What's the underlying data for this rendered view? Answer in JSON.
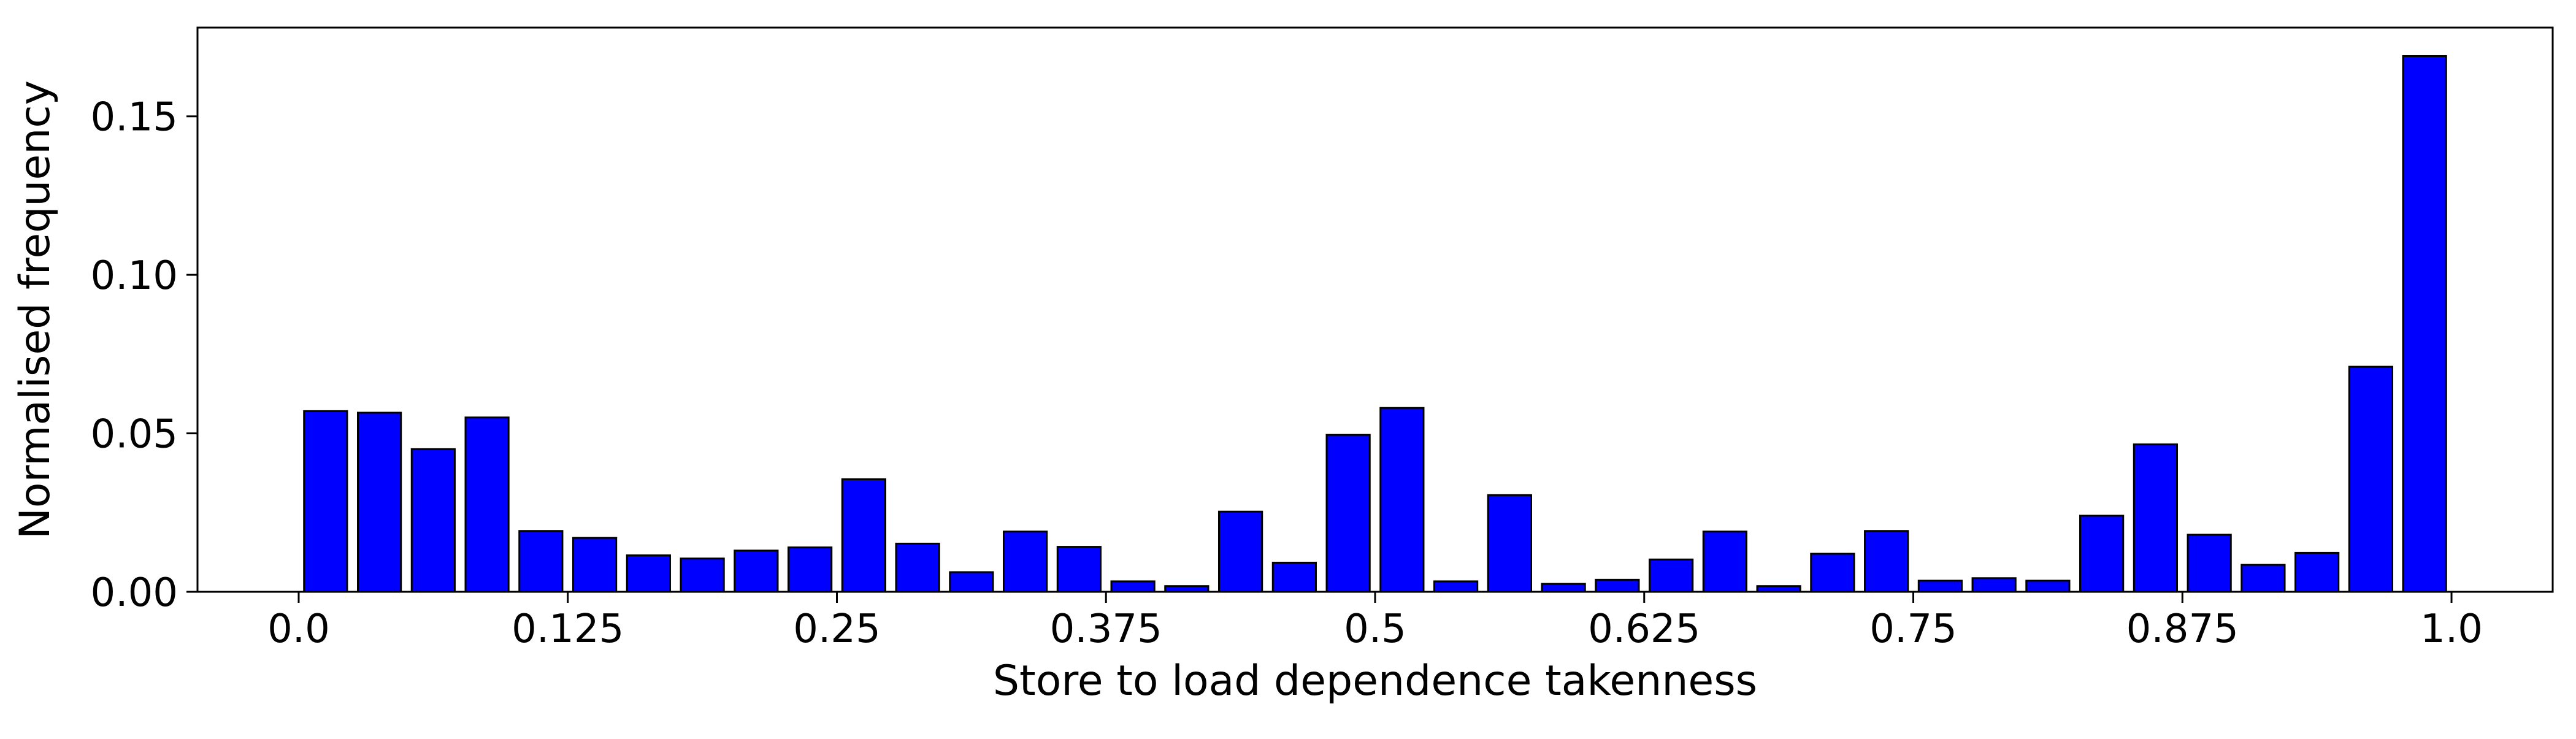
{
  "chart_data": {
    "type": "bar",
    "title": "",
    "xlabel": "Store to load dependence takenness",
    "ylabel": "Normalised frequency",
    "x_ticks": [
      "0.0",
      "0.125",
      "0.25",
      "0.375",
      "0.5",
      "0.625",
      "0.75",
      "0.875",
      "1.0"
    ],
    "x_tick_values": [
      0.0,
      0.125,
      0.25,
      0.375,
      0.5,
      0.625,
      0.75,
      0.875,
      1.0
    ],
    "y_ticks": [
      "0.00",
      "0.05",
      "0.10",
      "0.15"
    ],
    "y_tick_values": [
      0.0,
      0.05,
      0.1,
      0.15
    ],
    "xlim": [
      -0.047,
      1.047
    ],
    "ylim": [
      0.0,
      0.178
    ],
    "grid": false,
    "legend": false,
    "bar_color": "#0000ff",
    "edge_color": "#000000",
    "x": [
      0.0125,
      0.0375,
      0.0625,
      0.0875,
      0.1125,
      0.1375,
      0.1625,
      0.1875,
      0.2125,
      0.2375,
      0.2625,
      0.2875,
      0.3125,
      0.3375,
      0.3625,
      0.3875,
      0.4125,
      0.4375,
      0.4625,
      0.4875,
      0.5125,
      0.5375,
      0.5625,
      0.5875,
      0.6125,
      0.6375,
      0.6625,
      0.6875,
      0.7125,
      0.7375,
      0.7625,
      0.7875,
      0.8125,
      0.8375,
      0.8625,
      0.8875,
      0.9125,
      0.9375,
      0.9625,
      0.9875
    ],
    "values": [
      0.057,
      0.0565,
      0.045,
      0.055,
      0.0192,
      0.017,
      0.0115,
      0.0105,
      0.013,
      0.014,
      0.0355,
      0.0152,
      0.0062,
      0.019,
      0.0142,
      0.0033,
      0.0018,
      0.0253,
      0.0092,
      0.0495,
      0.058,
      0.0033,
      0.0305,
      0.0025,
      0.0038,
      0.0102,
      0.019,
      0.0018,
      0.012,
      0.0192,
      0.0035,
      0.0043,
      0.0035,
      0.024,
      0.0465,
      0.018,
      0.0085,
      0.0123,
      0.071,
      0.169
    ]
  }
}
